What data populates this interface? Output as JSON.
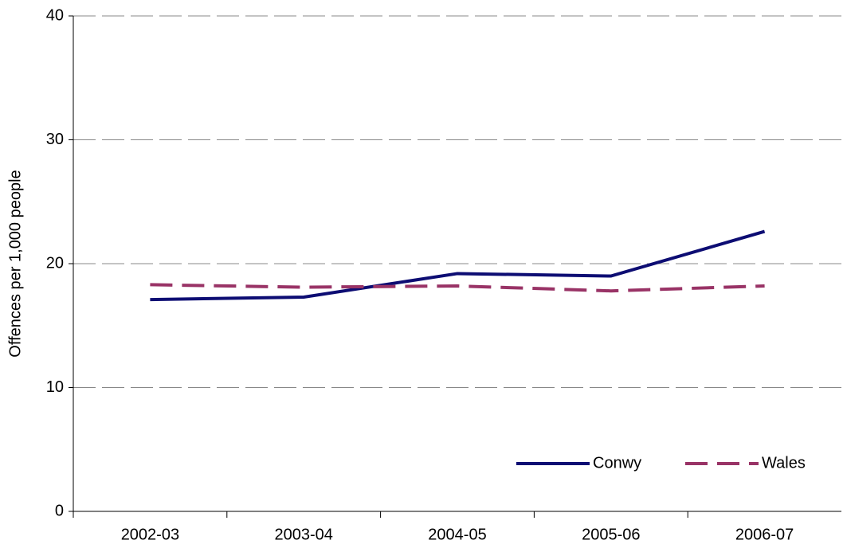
{
  "chart_data": {
    "type": "line",
    "y_label": "Offences per 1,000 people",
    "categories": [
      "2002-03",
      "2003-04",
      "2004-05",
      "2005-06",
      "2006-07"
    ],
    "series": [
      {
        "name": "Conwy",
        "color": "#0d0d73",
        "dash": "solid",
        "values": [
          17.1,
          17.3,
          19.2,
          19.0,
          22.6
        ]
      },
      {
        "name": "Wales",
        "color": "#993366",
        "dash": "dashed",
        "values": [
          18.3,
          18.1,
          18.2,
          17.8,
          18.2
        ]
      }
    ],
    "ylim": [
      0,
      40
    ],
    "yticks": [
      0,
      10,
      20,
      30,
      40
    ],
    "grid": true,
    "legend": "lower right"
  }
}
